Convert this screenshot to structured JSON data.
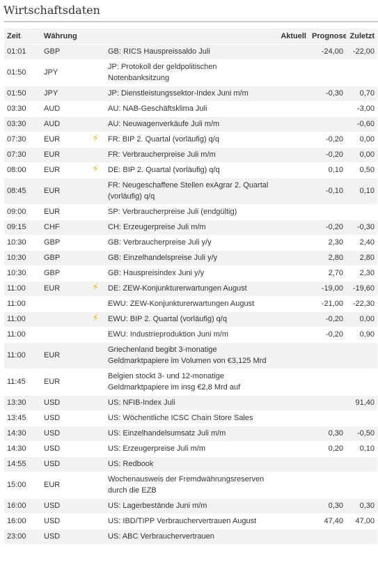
{
  "title": "Wirtschaftsdaten",
  "columns": {
    "time": "Zeit",
    "currency": "Währung",
    "actual": "Aktuell",
    "forecast": "Prognose",
    "previous": "Zuletzt"
  },
  "icons": {
    "important": "lightning-icon"
  },
  "colors": {
    "row_shade": "#f2f2f2",
    "flash": "#f2b31b"
  },
  "rows": [
    {
      "time": "01:01",
      "currency": "GBP",
      "important": false,
      "event": "GB: RICS Hauspreissaldo Juli",
      "actual": "",
      "forecast": "-24,00",
      "previous": "-22,00"
    },
    {
      "time": "01:50",
      "currency": "JPY",
      "important": false,
      "event": "JP: Protokoll der geldpolitischen Notenbanksitzung",
      "actual": "",
      "forecast": "",
      "previous": ""
    },
    {
      "time": "01:50",
      "currency": "JPY",
      "important": false,
      "event": "JP: Dienstleistungssektor-Index Juni m/m",
      "actual": "",
      "forecast": "-0,30",
      "previous": "0,70"
    },
    {
      "time": "03:30",
      "currency": "AUD",
      "important": false,
      "event": "AU: NAB-Geschäftsklima Juli",
      "actual": "",
      "forecast": "",
      "previous": "-3,00"
    },
    {
      "time": "03:30",
      "currency": "AUD",
      "important": false,
      "event": "AU: Neuwagenverkäufe Juli m/m",
      "actual": "",
      "forecast": "",
      "previous": "-0,60"
    },
    {
      "time": "07:30",
      "currency": "EUR",
      "important": true,
      "event": "FR: BIP 2. Quartal (vorläufig) q/q",
      "actual": "",
      "forecast": "-0,20",
      "previous": "0,00"
    },
    {
      "time": "07:30",
      "currency": "EUR",
      "important": false,
      "event": "FR: Verbraucherpreise Juli m/m",
      "actual": "",
      "forecast": "-0,20",
      "previous": "0,00"
    },
    {
      "time": "08:00",
      "currency": "EUR",
      "important": true,
      "event": "DE: BIP 2. Quartal (vorläufig) q/q",
      "actual": "",
      "forecast": "0,10",
      "previous": "0,50"
    },
    {
      "time": "08:45",
      "currency": "EUR",
      "important": false,
      "event": "FR: Neugeschaffene Stellen exAgrar 2. Quartal (vorläufig) q/q",
      "actual": "",
      "forecast": "-0,10",
      "previous": "0,10"
    },
    {
      "time": "09:00",
      "currency": "EUR",
      "important": false,
      "event": "SP: Verbraucherpreise Juli (endgültig)",
      "actual": "",
      "forecast": "",
      "previous": ""
    },
    {
      "time": "09:15",
      "currency": "CHF",
      "important": false,
      "event": "CH: Erzeugerpreise Juli m/m",
      "actual": "",
      "forecast": "-0,20",
      "previous": "-0,30"
    },
    {
      "time": "10:30",
      "currency": "GBP",
      "important": false,
      "event": "GB: Verbraucherpreise Juli y/y",
      "actual": "",
      "forecast": "2,30",
      "previous": "2,40"
    },
    {
      "time": "10:30",
      "currency": "GBP",
      "important": false,
      "event": "GB: Einzelhandelspreise Juli y/y",
      "actual": "",
      "forecast": "2,80",
      "previous": "2,80"
    },
    {
      "time": "10:30",
      "currency": "GBP",
      "important": false,
      "event": "GB: Hauspreisindex Juni y/y",
      "actual": "",
      "forecast": "2,70",
      "previous": "2,30"
    },
    {
      "time": "11:00",
      "currency": "EUR",
      "important": true,
      "event": "DE: ZEW-Konjunkturerwartungen August",
      "actual": "",
      "forecast": "-19,00",
      "previous": "-19,60"
    },
    {
      "time": "11:00",
      "currency": "",
      "important": false,
      "event": "EWU: ZEW-Konjunkturerwartungen August",
      "actual": "",
      "forecast": "-21,00",
      "previous": "-22,30"
    },
    {
      "time": "11:00",
      "currency": "",
      "important": true,
      "event": "EWU: BIP 2. Quartal (vorläufig) q/q",
      "actual": "",
      "forecast": "-0,20",
      "previous": "0,00"
    },
    {
      "time": "11:00",
      "currency": "",
      "important": false,
      "event": "EWU: Industrieproduktion Juni m/m",
      "actual": "",
      "forecast": "-0,20",
      "previous": "0,90"
    },
    {
      "time": "11:00",
      "currency": "EUR",
      "important": false,
      "event": "Griechenland begibt 3-monatige Geldmarktpapiere im Volumen von €3,125 Mrd",
      "actual": "",
      "forecast": "",
      "previous": ""
    },
    {
      "time": "11:45",
      "currency": "EUR",
      "important": false,
      "event": "Belgien stockt 3- und 12-monatige Geldmarktpapiere im insg €2,8 Mrd auf",
      "actual": "",
      "forecast": "",
      "previous": ""
    },
    {
      "time": "13:30",
      "currency": "USD",
      "important": false,
      "event": "US: NFIB-Index Juli",
      "actual": "",
      "forecast": "",
      "previous": "91,40"
    },
    {
      "time": "13:45",
      "currency": "USD",
      "important": false,
      "event": "US: Wöchentliche ICSC Chain Store Sales",
      "actual": "",
      "forecast": "",
      "previous": ""
    },
    {
      "time": "14:30",
      "currency": "USD",
      "important": false,
      "event": "US: Einzelhandelsumsatz Juli m/m",
      "actual": "",
      "forecast": "0,30",
      "previous": "-0,50"
    },
    {
      "time": "14:30",
      "currency": "USD",
      "important": false,
      "event": "US: Erzeugerpreise Juli m/m",
      "actual": "",
      "forecast": "0,20",
      "previous": "0,10"
    },
    {
      "time": "14:55",
      "currency": "USD",
      "important": false,
      "event": "US: Redbook",
      "actual": "",
      "forecast": "",
      "previous": ""
    },
    {
      "time": "15:00",
      "currency": "EUR",
      "important": false,
      "event": "Wochenausweis der Fremdwährungsreserven durch die EZB",
      "actual": "",
      "forecast": "",
      "previous": ""
    },
    {
      "time": "16:00",
      "currency": "USD",
      "important": false,
      "event": "US: Lagerbestände Juni m/m",
      "actual": "",
      "forecast": "0,30",
      "previous": "0,30"
    },
    {
      "time": "16:00",
      "currency": "USD",
      "important": false,
      "event": "US: IBD/TIPP Verbrauchervertrauen August",
      "actual": "",
      "forecast": "47,40",
      "previous": "47,00"
    },
    {
      "time": "23:00",
      "currency": "USD",
      "important": false,
      "event": "US: ABC Verbrauchervertrauen",
      "actual": "",
      "forecast": "",
      "previous": ""
    }
  ]
}
